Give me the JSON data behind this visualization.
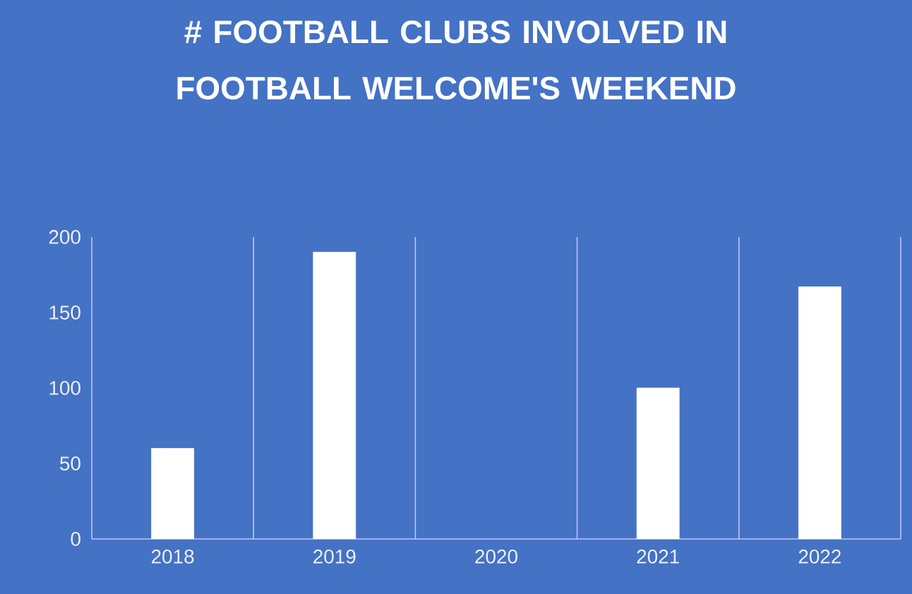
{
  "chart_data": {
    "type": "bar",
    "title": "# FOOTBALL CLUBS INVOLVED IN FOOTBALL WELCOME'S WEEKEND",
    "categories": [
      "2018",
      "2019",
      "2020",
      "2021",
      "2022"
    ],
    "values": [
      60,
      190,
      null,
      100,
      167
    ],
    "color": "#ffffff",
    "ylim": [
      0,
      200
    ],
    "yticks": [
      0,
      50,
      100,
      150,
      200
    ],
    "grid": "x"
  }
}
